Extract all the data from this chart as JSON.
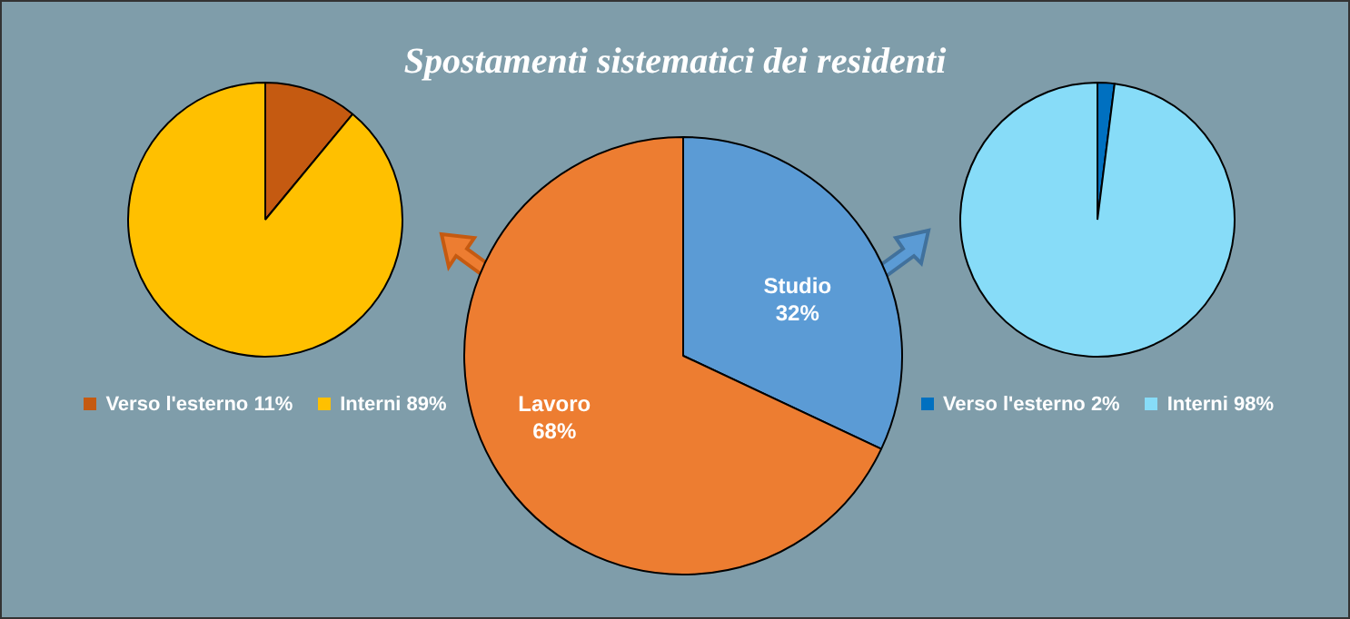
{
  "chart_data": [
    {
      "type": "pie",
      "categories": [
        "Verso l'esterno",
        "Interni"
      ],
      "values": [
        11,
        89
      ],
      "value_labels": [
        "11%",
        "89%"
      ],
      "colors": [
        "#c55a11",
        "#ffc000"
      ],
      "legend": "bottom"
    },
    {
      "type": "pie",
      "title": "Spostamenti sistematici dei residenti",
      "categories": [
        "Studio",
        "Lavoro"
      ],
      "values": [
        32,
        68
      ],
      "value_labels": [
        "32%",
        "68%"
      ],
      "colors": [
        "#5b9bd5",
        "#ed7d31"
      ],
      "legend": false
    },
    {
      "type": "pie",
      "categories": [
        "Verso l'esterno",
        "Interni"
      ],
      "values": [
        2,
        98
      ],
      "value_labels": [
        "2%",
        "98%"
      ],
      "colors": [
        "#0070c0",
        "#87dcf8"
      ],
      "legend": "bottom"
    }
  ]
}
